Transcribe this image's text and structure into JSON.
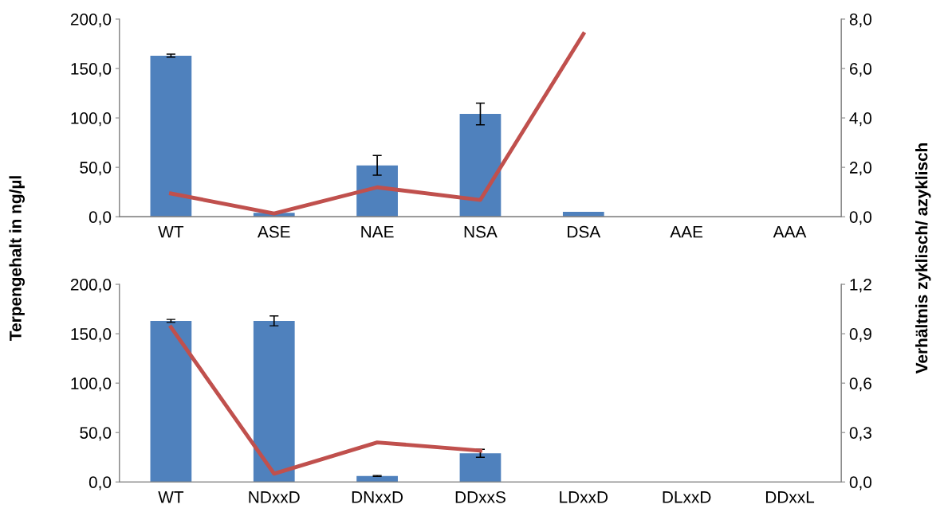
{
  "chart_data": [
    {
      "type": "bar",
      "categories": [
        "WT",
        "ASE",
        "NAE",
        "NSA",
        "DSA",
        "AAE",
        "AAA"
      ],
      "ylabel": "Terpengehalt in ng/µl",
      "y2label": "Verhältnis zyklisch/ azyklisch",
      "series": [
        {
          "color": "#4f81bd",
          "values": [
            163,
            4,
            52,
            104,
            5,
            0,
            0
          ],
          "errors": [
            1.5,
            null,
            10,
            11,
            null,
            null,
            null
          ]
        },
        {
          "type": "line",
          "axis": "y2",
          "color": "#c0504d",
          "values": [
            0.94,
            0.13,
            1.19,
            0.68,
            7.4,
            null,
            null
          ]
        }
      ],
      "ylim": [
        0,
        200
      ],
      "yticks": [
        {
          "value": 0,
          "label": "0,0"
        },
        {
          "value": 50,
          "label": "50,0"
        },
        {
          "value": 100,
          "label": "100,0"
        },
        {
          "value": 150,
          "label": "150,0"
        },
        {
          "value": 200,
          "label": "200,0"
        }
      ],
      "y2lim": [
        0,
        8
      ],
      "y2ticks": [
        {
          "value": 0,
          "label": "0,0"
        },
        {
          "value": 2,
          "label": "2,0"
        },
        {
          "value": 4,
          "label": "4,0"
        },
        {
          "value": 6,
          "label": "6,0"
        },
        {
          "value": 8,
          "label": "8,0"
        }
      ],
      "grid": false,
      "legend": false
    },
    {
      "type": "bar",
      "categories": [
        "WT",
        "NDxxD",
        "DNxxD",
        "DDxxS",
        "LDxxD",
        "DLxxD",
        "DDxxL"
      ],
      "series": [
        {
          "color": "#4f81bd",
          "values": [
            163,
            163,
            6,
            29,
            0,
            0,
            0
          ],
          "errors": [
            1.5,
            5,
            0.5,
            4,
            null,
            null,
            null
          ]
        },
        {
          "type": "line",
          "axis": "y2",
          "color": "#c0504d",
          "values": [
            0.94,
            0.05,
            0.24,
            0.19,
            null,
            null,
            null
          ]
        }
      ],
      "ylim": [
        0,
        200
      ],
      "yticks": [
        {
          "value": 0,
          "label": "0,0"
        },
        {
          "value": 50,
          "label": "50,0"
        },
        {
          "value": 100,
          "label": "100,0"
        },
        {
          "value": 150,
          "label": "150,0"
        },
        {
          "value": 200,
          "label": "200,0"
        }
      ],
      "y2lim": [
        0,
        1.2
      ],
      "y2ticks": [
        {
          "value": 0,
          "label": "0,0"
        },
        {
          "value": 0.3,
          "label": "0,3"
        },
        {
          "value": 0.6,
          "label": "0,6"
        },
        {
          "value": 0.9,
          "label": "0,9"
        },
        {
          "value": 1.2,
          "label": "1,2"
        }
      ],
      "grid": false,
      "legend": false
    }
  ]
}
